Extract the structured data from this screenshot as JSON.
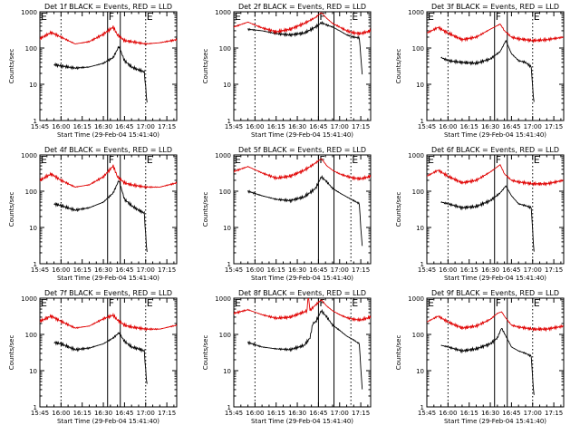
{
  "x_tick_labels": [
    "15:45",
    "16:00",
    "16:15",
    "16:30",
    "16:45",
    "17:00",
    "17:15"
  ],
  "y_tick_labels": [
    "1",
    "10",
    "100",
    "1000"
  ],
  "ylabel": "Counts/sec",
  "colors": {
    "events": "#000000",
    "lld": "#e00000"
  },
  "chart_data": [
    {
      "type": "line",
      "title": "Det 1f BLACK = Events, RED = LLD",
      "xlabel": "Start Time (29-Feb-04 15:41:40)",
      "ylabel": "Counts/sec",
      "x_unit": "minutes after 15:45",
      "xlim": [
        0,
        97
      ],
      "ylim": [
        1,
        1000
      ],
      "y_scale": "log",
      "markers": [
        {
          "label": "E",
          "x": 0
        },
        {
          "label": "",
          "x": 15
        },
        {
          "label": "F",
          "x": 48
        },
        {
          "label": "",
          "x": 57
        },
        {
          "label": "E",
          "x": 75
        }
      ],
      "series": [
        {
          "name": "Events",
          "color": "#000000",
          "x": [
            10,
            15,
            25,
            35,
            45,
            52,
            56,
            60,
            65,
            70,
            74,
            75,
            76
          ],
          "y": [
            35,
            32,
            28,
            30,
            38,
            55,
            110,
            45,
            30,
            25,
            22,
            8,
            3
          ]
        },
        {
          "name": "LLD",
          "color": "#e00000",
          "x": [
            0,
            8,
            15,
            25,
            35,
            45,
            52,
            55,
            60,
            65,
            75,
            85,
            97
          ],
          "y": [
            180,
            270,
            200,
            130,
            150,
            240,
            380,
            230,
            160,
            150,
            130,
            140,
            170
          ]
        }
      ]
    },
    {
      "type": "line",
      "title": "Det 2f BLACK = Events, RED = LLD",
      "xlabel": "Start Time (29-Feb-04 15:41:40)",
      "ylabel": "Counts/sec",
      "x_unit": "minutes after 15:45",
      "xlim": [
        0,
        97
      ],
      "ylim": [
        1,
        1000
      ],
      "y_scale": "log",
      "markers": [
        {
          "label": "E",
          "x": 0
        },
        {
          "label": "",
          "x": 15
        },
        {
          "label": "F",
          "x": 60
        },
        {
          "label": "",
          "x": 71
        },
        {
          "label": "E",
          "x": 83
        }
      ],
      "series": [
        {
          "name": "Events",
          "color": "#000000",
          "x": [
            10,
            20,
            30,
            40,
            50,
            58,
            62,
            66,
            70,
            75,
            80,
            85,
            89,
            90,
            91
          ],
          "y": [
            330,
            300,
            250,
            230,
            260,
            380,
            500,
            430,
            380,
            300,
            230,
            200,
            190,
            60,
            18
          ]
        },
        {
          "name": "LLD",
          "color": "#e00000",
          "x": [
            0,
            10,
            20,
            30,
            40,
            50,
            58,
            62,
            66,
            70,
            75,
            80,
            85,
            90,
            97
          ],
          "y": [
            380,
            520,
            360,
            280,
            330,
            480,
            700,
            950,
            650,
            480,
            380,
            300,
            260,
            250,
            300
          ]
        }
      ]
    },
    {
      "type": "line",
      "title": "Det 3f BLACK = Events, RED = LLD",
      "xlabel": "Start Time (29-Feb-04 15:41:40)",
      "ylabel": "Counts/sec",
      "x_unit": "minutes after 15:45",
      "xlim": [
        0,
        97
      ],
      "ylim": [
        1,
        1000
      ],
      "y_scale": "log",
      "markers": [
        {
          "label": "E",
          "x": 0
        },
        {
          "label": "",
          "x": 15
        },
        {
          "label": "F",
          "x": 48
        },
        {
          "label": "",
          "x": 57
        },
        {
          "label": "E",
          "x": 75
        }
      ],
      "series": [
        {
          "name": "Events",
          "color": "#000000",
          "x": [
            10,
            15,
            25,
            35,
            45,
            52,
            56,
            60,
            65,
            70,
            74,
            75,
            76
          ],
          "y": [
            55,
            45,
            40,
            38,
            50,
            80,
            160,
            70,
            45,
            40,
            30,
            8,
            3
          ]
        },
        {
          "name": "LLD",
          "color": "#e00000",
          "x": [
            0,
            8,
            15,
            25,
            35,
            45,
            52,
            55,
            60,
            65,
            75,
            85,
            97
          ],
          "y": [
            260,
            370,
            260,
            170,
            200,
            330,
            460,
            300,
            200,
            180,
            160,
            170,
            200
          ]
        }
      ]
    },
    {
      "type": "line",
      "title": "Det 4f BLACK = Events, RED = LLD",
      "xlabel": "Start Time (29-Feb-04 15:41:40)",
      "ylabel": "Counts/sec",
      "x_unit": "minutes after 15:45",
      "xlim": [
        0,
        97
      ],
      "ylim": [
        1,
        1000
      ],
      "y_scale": "log",
      "markers": [
        {
          "label": "E",
          "x": 0
        },
        {
          "label": "",
          "x": 15
        },
        {
          "label": "F",
          "x": 48
        },
        {
          "label": "",
          "x": 57
        },
        {
          "label": "E",
          "x": 75
        }
      ],
      "series": [
        {
          "name": "Events",
          "color": "#000000",
          "x": [
            10,
            15,
            25,
            35,
            45,
            52,
            56,
            60,
            65,
            70,
            74,
            75,
            76
          ],
          "y": [
            45,
            40,
            30,
            35,
            50,
            90,
            200,
            60,
            40,
            30,
            25,
            6,
            2
          ]
        },
        {
          "name": "LLD",
          "color": "#e00000",
          "x": [
            0,
            8,
            15,
            25,
            35,
            45,
            52,
            55,
            60,
            65,
            75,
            85,
            97
          ],
          "y": [
            200,
            300,
            200,
            130,
            150,
            250,
            500,
            250,
            170,
            150,
            130,
            130,
            170
          ]
        }
      ]
    },
    {
      "type": "line",
      "title": "Det 5f BLACK = Events, RED = LLD",
      "xlabel": "Start Time (29-Feb-04 15:41:40)",
      "ylabel": "Counts/sec",
      "x_unit": "minutes after 15:45",
      "xlim": [
        0,
        97
      ],
      "ylim": [
        1,
        1000
      ],
      "y_scale": "log",
      "markers": [
        {
          "label": "E",
          "x": 0
        },
        {
          "label": "",
          "x": 15
        },
        {
          "label": "F",
          "x": 60
        },
        {
          "label": "",
          "x": 71
        },
        {
          "label": "E",
          "x": 83
        }
      ],
      "series": [
        {
          "name": "Events",
          "color": "#000000",
          "x": [
            10,
            20,
            30,
            40,
            50,
            58,
            62,
            66,
            70,
            75,
            80,
            85,
            89,
            90,
            91
          ],
          "y": [
            100,
            75,
            60,
            55,
            70,
            120,
            250,
            180,
            120,
            90,
            70,
            55,
            45,
            10,
            3
          ]
        },
        {
          "name": "LLD",
          "color": "#e00000",
          "x": [
            0,
            10,
            20,
            30,
            40,
            50,
            58,
            62,
            66,
            70,
            75,
            80,
            85,
            90,
            97
          ],
          "y": [
            350,
            480,
            320,
            230,
            260,
            380,
            600,
            800,
            500,
            380,
            300,
            260,
            230,
            220,
            260
          ]
        }
      ]
    },
    {
      "type": "line",
      "title": "Det 6f BLACK = Events, RED = LLD",
      "xlabel": "Start Time (29-Feb-04 15:41:40)",
      "ylabel": "Counts/sec",
      "x_unit": "minutes after 15:45",
      "xlim": [
        0,
        97
      ],
      "ylim": [
        1,
        1000
      ],
      "y_scale": "log",
      "markers": [
        {
          "label": "E",
          "x": 0
        },
        {
          "label": "",
          "x": 15
        },
        {
          "label": "F",
          "x": 48
        },
        {
          "label": "",
          "x": 57
        },
        {
          "label": "E",
          "x": 75
        }
      ],
      "series": [
        {
          "name": "Events",
          "color": "#000000",
          "x": [
            10,
            15,
            25,
            35,
            45,
            52,
            56,
            60,
            65,
            70,
            74,
            75,
            76
          ],
          "y": [
            50,
            45,
            35,
            38,
            55,
            90,
            140,
            75,
            45,
            40,
            35,
            8,
            2
          ]
        },
        {
          "name": "LLD",
          "color": "#e00000",
          "x": [
            0,
            8,
            15,
            25,
            35,
            45,
            52,
            55,
            60,
            65,
            75,
            85,
            97
          ],
          "y": [
            260,
            380,
            260,
            170,
            200,
            340,
            540,
            300,
            200,
            180,
            160,
            160,
            200
          ]
        }
      ]
    },
    {
      "type": "line",
      "title": "Det 7f BLACK = Events, RED = LLD",
      "xlabel": "Start Time (29-Feb-04 15:41:40)",
      "ylabel": "Counts/sec",
      "x_unit": "minutes after 15:45",
      "xlim": [
        0,
        97
      ],
      "ylim": [
        1,
        1000
      ],
      "y_scale": "log",
      "markers": [
        {
          "label": "E",
          "x": 0
        },
        {
          "label": "",
          "x": 15
        },
        {
          "label": "F",
          "x": 48
        },
        {
          "label": "",
          "x": 57
        },
        {
          "label": "E",
          "x": 75
        }
      ],
      "series": [
        {
          "name": "Events",
          "color": "#000000",
          "x": [
            10,
            15,
            25,
            35,
            45,
            52,
            56,
            60,
            65,
            70,
            74,
            75,
            76
          ],
          "y": [
            60,
            55,
            38,
            42,
            55,
            80,
            110,
            65,
            45,
            40,
            35,
            10,
            4
          ]
        },
        {
          "name": "LLD",
          "color": "#e00000",
          "x": [
            0,
            8,
            15,
            25,
            35,
            45,
            52,
            55,
            60,
            65,
            75,
            85,
            97
          ],
          "y": [
            230,
            320,
            230,
            150,
            170,
            270,
            340,
            250,
            180,
            160,
            140,
            140,
            180
          ]
        }
      ]
    },
    {
      "type": "line",
      "title": "Det 8f BLACK = Events, RED = LLD",
      "xlabel": "Start Time (29-Feb-04 15:41:40)",
      "ylabel": "Counts/sec",
      "x_unit": "minutes after 15:45",
      "xlim": [
        0,
        97
      ],
      "ylim": [
        1,
        1000
      ],
      "y_scale": "log",
      "markers": [
        {
          "label": "E",
          "x": 0
        },
        {
          "label": "",
          "x": 15
        },
        {
          "label": "F",
          "x": 60
        },
        {
          "label": "",
          "x": 71
        },
        {
          "label": "E",
          "x": 83
        }
      ],
      "series": [
        {
          "name": "Events",
          "color": "#000000",
          "x": [
            10,
            20,
            30,
            40,
            50,
            54,
            56,
            58,
            62,
            66,
            70,
            75,
            80,
            85,
            89,
            90,
            91
          ],
          "y": [
            60,
            45,
            40,
            38,
            50,
            80,
            200,
            220,
            450,
            300,
            180,
            130,
            90,
            70,
            55,
            12,
            3
          ]
        },
        {
          "name": "LLD",
          "color": "#e00000",
          "x": [
            0,
            10,
            20,
            30,
            40,
            50,
            52,
            52.5,
            53,
            54,
            58,
            62,
            66,
            70,
            75,
            80,
            85,
            90,
            97
          ],
          "y": [
            380,
            480,
            350,
            280,
            300,
            420,
            450,
            1000,
            1000,
            460,
            650,
            900,
            600,
            450,
            350,
            290,
            260,
            250,
            300
          ]
        }
      ]
    },
    {
      "type": "line",
      "title": "Det 9f BLACK = Events, RED = LLD",
      "xlabel": "Start Time (29-Feb-04 15:41:40)",
      "ylabel": "Counts/sec",
      "x_unit": "minutes after 15:45",
      "xlim": [
        0,
        97
      ],
      "ylim": [
        1,
        1000
      ],
      "y_scale": "log",
      "markers": [
        {
          "label": "E",
          "x": 0
        },
        {
          "label": "",
          "x": 15
        },
        {
          "label": "F",
          "x": 48
        },
        {
          "label": "",
          "x": 57
        },
        {
          "label": "E",
          "x": 75
        }
      ],
      "series": [
        {
          "name": "Events",
          "color": "#000000",
          "x": [
            10,
            15,
            25,
            35,
            45,
            50,
            53,
            56,
            60,
            65,
            70,
            74,
            75,
            76
          ],
          "y": [
            50,
            45,
            35,
            40,
            55,
            80,
            150,
            90,
            45,
            35,
            30,
            25,
            6,
            2
          ]
        },
        {
          "name": "LLD",
          "color": "#e00000",
          "x": [
            0,
            8,
            15,
            25,
            35,
            45,
            50,
            53,
            56,
            60,
            65,
            75,
            85,
            97
          ],
          "y": [
            220,
            320,
            220,
            150,
            170,
            260,
            380,
            420,
            280,
            180,
            160,
            140,
            140,
            170
          ]
        }
      ]
    }
  ]
}
